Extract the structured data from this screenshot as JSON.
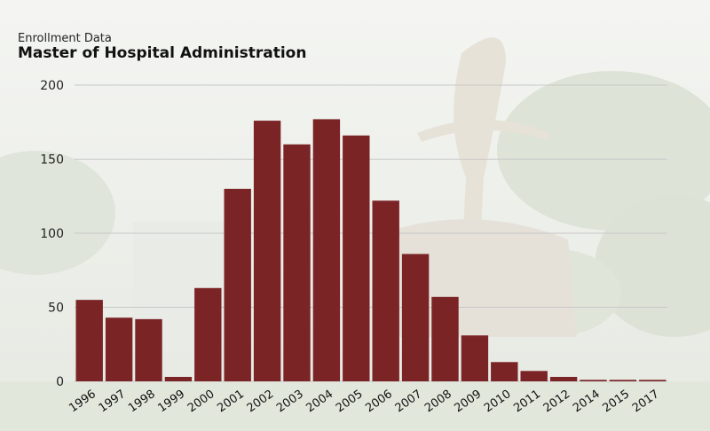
{
  "header": {
    "subtitle": "Enrollment Data",
    "title": "Master of Hospital Administration"
  },
  "colors": {
    "bar": "#7a2426",
    "grid": "#c8c8c8"
  },
  "chart_data": {
    "type": "bar",
    "title": "Master of Hospital Administration",
    "subtitle": "Enrollment Data",
    "xlabel": "",
    "ylabel": "",
    "ylim": [
      0,
      200
    ],
    "yticks": [
      0,
      50,
      100,
      150,
      200
    ],
    "grid": true,
    "categories": [
      "1996",
      "1997",
      "1998",
      "1999",
      "2000",
      "2001",
      "2002",
      "2003",
      "2004",
      "2005",
      "2006",
      "2007",
      "2008",
      "2009",
      "2010",
      "2011",
      "2012",
      "2014",
      "2015",
      "2017"
    ],
    "values": [
      55,
      43,
      42,
      3,
      63,
      130,
      176,
      160,
      177,
      166,
      122,
      86,
      57,
      31,
      13,
      7,
      3,
      1,
      1,
      1
    ]
  }
}
